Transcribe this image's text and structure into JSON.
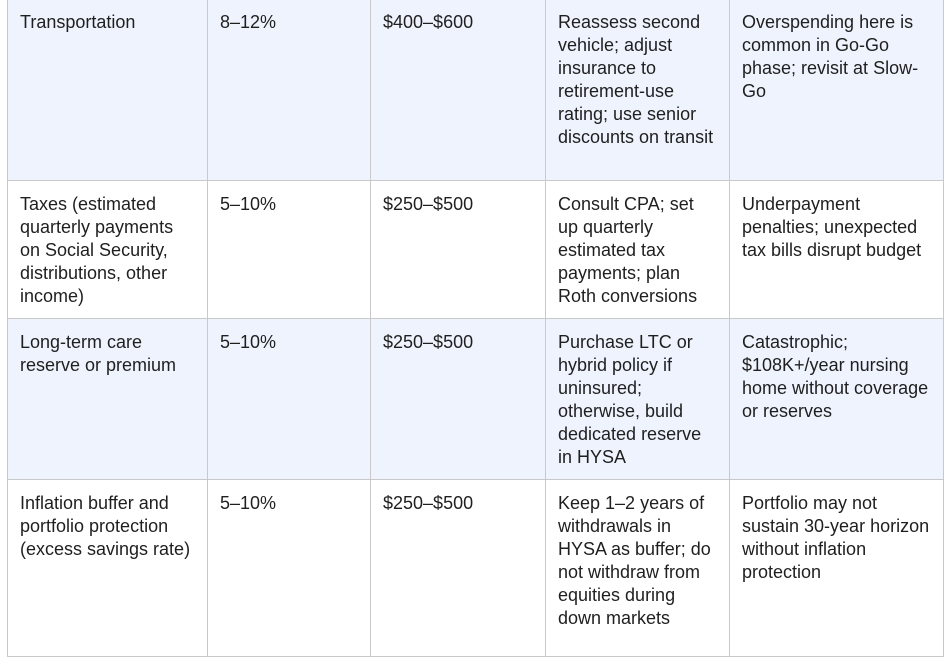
{
  "table": {
    "rows": [
      {
        "category": "Transportation",
        "percent": "8–12%",
        "amount": "$400–$600",
        "action": "Reassess second vehicle; adjust insurance to retirement-use rating; use senior discounts on transit",
        "risk": "Overspending here is common in Go-Go phase; revisit at Slow-Go"
      },
      {
        "category": "Taxes (estimated quarterly payments on Social Security, distributions, other income)",
        "percent": "5–10%",
        "amount": "$250–$500",
        "action": "Consult CPA; set up quarterly estimated tax payments; plan Roth conversions",
        "risk": "Underpayment penalties; unexpected tax bills disrupt budget"
      },
      {
        "category": "Long-term care reserve or premium",
        "percent": "5–10%",
        "amount": "$250–$500",
        "action": "Purchase LTC or hybrid policy if uninsured; otherwise, build dedicated reserve in HYSA",
        "risk": "Catastrophic; $108K+/year nursing home without coverage or reserves"
      },
      {
        "category": "Inflation buffer and portfolio protection (excess savings rate)",
        "percent": "5–10%",
        "amount": "$250–$500",
        "action": "Keep 1–2 years of withdrawals in HYSA as buffer; do not withdraw from equities during down markets",
        "risk": "Portfolio may not sustain 30-year horizon without inflation protection"
      }
    ]
  }
}
